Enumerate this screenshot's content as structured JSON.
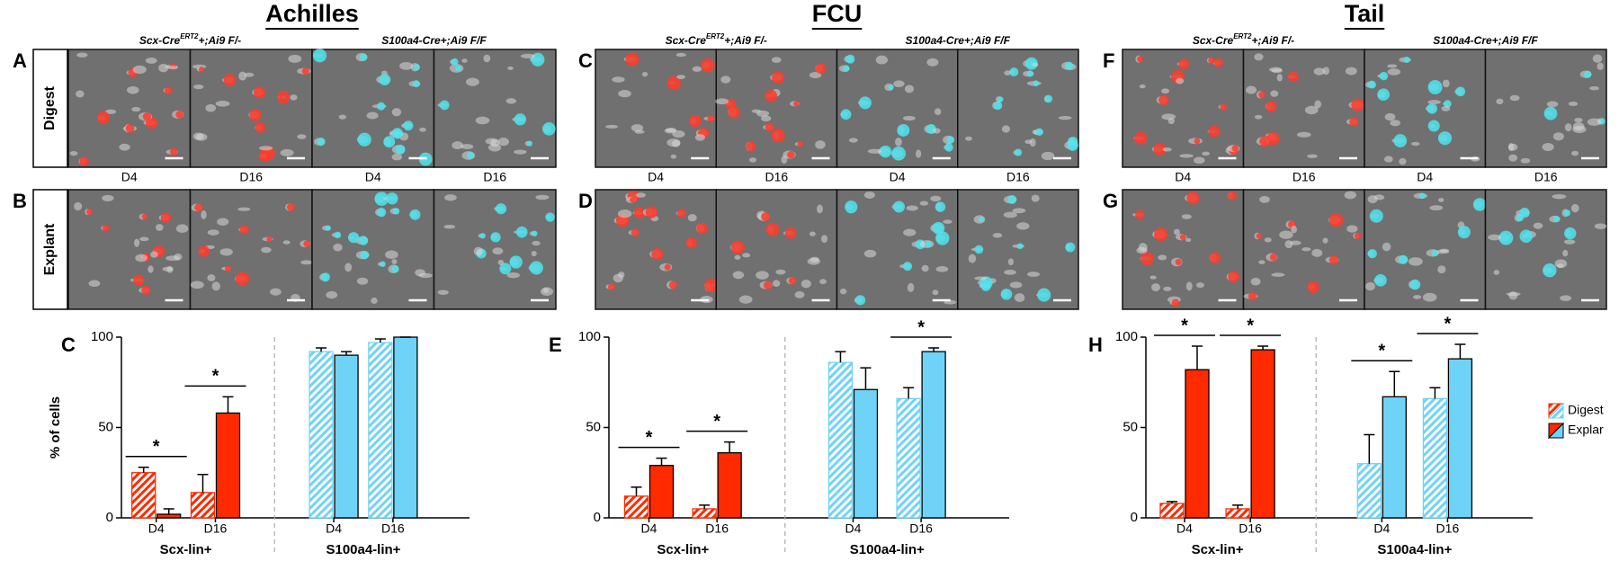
{
  "figure": {
    "rows": [
      "Digest",
      "Explant"
    ],
    "blocks": [
      {
        "title": "Achilles",
        "panels": [
          "A",
          "B"
        ],
        "genotypes": [
          {
            "text": "Scx-Cre",
            "sup": "ERT2",
            "rest": "+;Ai9 F/-"
          },
          {
            "text": "S100a4-Cre+;Ai9 F/F"
          }
        ],
        "columns": [
          "D4",
          "D16",
          "D4",
          "D16"
        ]
      },
      {
        "title": "FCU",
        "panels": [
          "C",
          "D"
        ],
        "genotypes": [
          {
            "text": "Scx-Cre",
            "sup": "ERT2",
            "rest": "+;Ai9 F/-"
          },
          {
            "text": "S100a4-Cre+;Ai9 F/F"
          }
        ],
        "columns": [
          "D4",
          "D16",
          "D4",
          "D16"
        ]
      },
      {
        "title": "Tail",
        "panels": [
          "F",
          "G"
        ],
        "genotypes": [
          {
            "text": "Scx-Cre",
            "sup": "ERT2",
            "rest": "+;Ai9 F/-"
          },
          {
            "text": "S100a4-Cre+;Ai9 F/F"
          }
        ],
        "columns": [
          "D4",
          "D16",
          "D4",
          "D16"
        ]
      }
    ]
  },
  "chart_data": [
    {
      "type": "bar",
      "panel": "C",
      "y_label": "% of cells",
      "categories": [
        "D4",
        "D16",
        "D4",
        "D16"
      ],
      "groups": [
        "Scx-lin+",
        "S100a4-lin+"
      ],
      "group_colors": [
        "#ff2a00",
        "#6fd3f7"
      ],
      "series": [
        {
          "hatch": true,
          "values": [
            25,
            14,
            92,
            97
          ],
          "errors": [
            3,
            10,
            2,
            2
          ]
        },
        {
          "hatch": false,
          "values": [
            2,
            58,
            90,
            100
          ],
          "errors": [
            3,
            9,
            2,
            0
          ]
        }
      ],
      "significance": [
        "*",
        "*",
        null,
        null
      ],
      "ylim": [
        0,
        100
      ],
      "yticks": [
        0,
        50,
        100
      ]
    },
    {
      "type": "bar",
      "panel": "E",
      "categories": [
        "D4",
        "D16",
        "D4",
        "D16"
      ],
      "groups": [
        "Scx-lin+",
        "S100a4-lin+"
      ],
      "group_colors": [
        "#ff2a00",
        "#6fd3f7"
      ],
      "series": [
        {
          "hatch": true,
          "values": [
            12,
            5,
            86,
            66
          ],
          "errors": [
            5,
            2,
            6,
            6
          ]
        },
        {
          "hatch": false,
          "values": [
            29,
            36,
            71,
            92
          ],
          "errors": [
            4,
            6,
            12,
            2
          ]
        }
      ],
      "significance": [
        "*",
        "*",
        null,
        "*"
      ],
      "ylim": [
        0,
        100
      ],
      "yticks": [
        0,
        50,
        100
      ]
    },
    {
      "type": "bar",
      "panel": "H",
      "categories": [
        "D4",
        "D16",
        "D4",
        "D16"
      ],
      "groups": [
        "Scx-lin+",
        "S100a4-lin+"
      ],
      "group_colors": [
        "#ff2a00",
        "#6fd3f7"
      ],
      "series": [
        {
          "name": "Digest",
          "hatch": true,
          "values": [
            8,
            5,
            30,
            66
          ],
          "errors": [
            1,
            2,
            16,
            6
          ]
        },
        {
          "name": "Explar",
          "hatch": false,
          "values": [
            82,
            93,
            67,
            88
          ],
          "errors": [
            13,
            2,
            14,
            8
          ]
        }
      ],
      "significance": [
        "*",
        "*",
        "*",
        "*"
      ],
      "legend": true,
      "ylim": [
        0,
        100
      ],
      "yticks": [
        0,
        50,
        100
      ]
    }
  ]
}
